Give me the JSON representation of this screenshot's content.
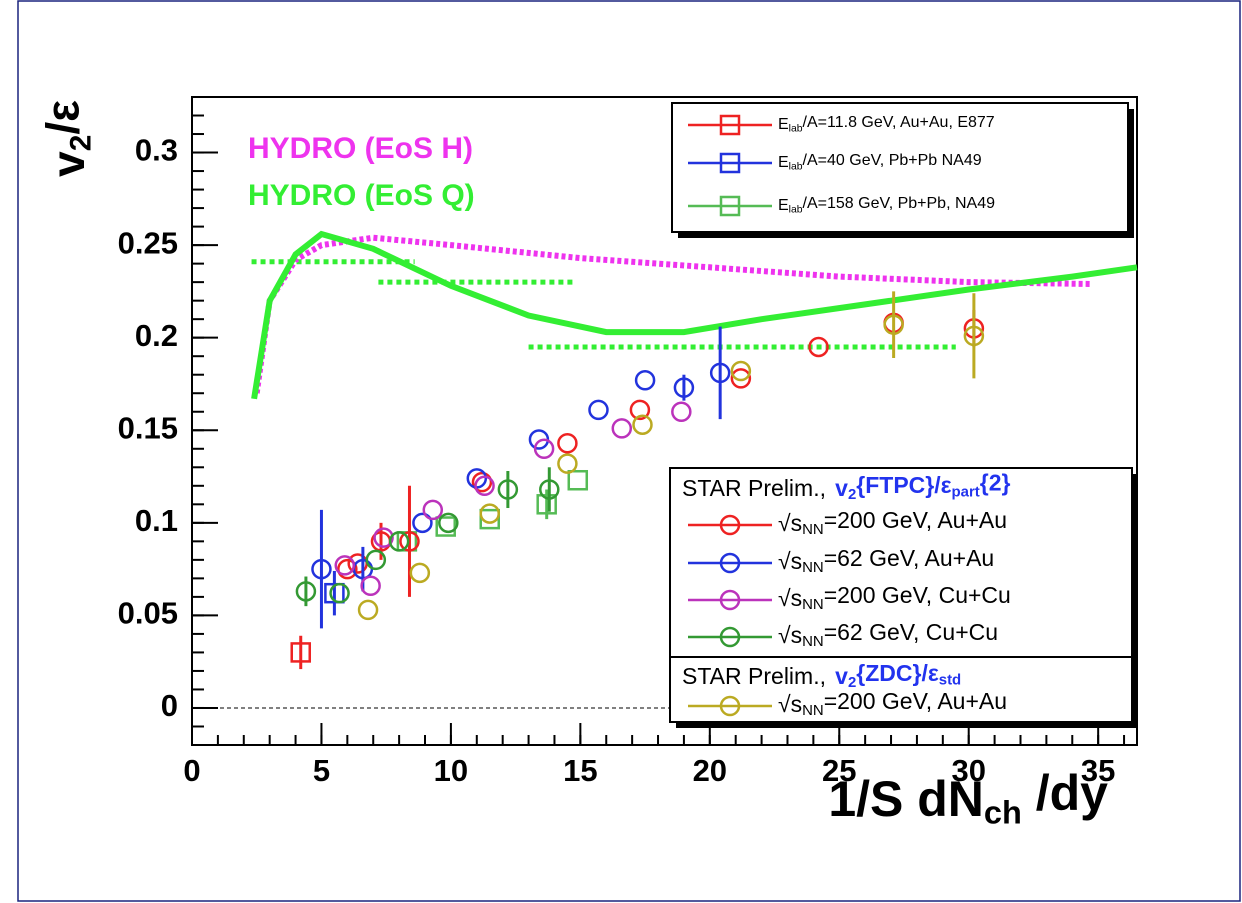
{
  "chart_data": {
    "type": "scatter",
    "y_title": [
      {
        "t": "v"
      },
      {
        "t": "2",
        "sub": true
      },
      {
        "t": "/ε"
      }
    ],
    "x_title": [
      {
        "t": "1/S dN"
      },
      {
        "t": "ch",
        "sub": true
      },
      {
        "t": " /dy"
      }
    ],
    "xlim": [
      0,
      36.5
    ],
    "ylim": [
      -0.02,
      0.33
    ],
    "xticks": [
      0,
      5,
      10,
      15,
      20,
      25,
      30,
      35
    ],
    "yticks": [
      0,
      0.05,
      0.1,
      0.15,
      0.2,
      0.25,
      0.3
    ],
    "hline": 0,
    "curves": [
      {
        "name": "HYDRO (EoS H)",
        "color": "#ee33ee",
        "style": "dotted",
        "x": [
          2.5,
          3,
          4,
          5,
          7,
          10,
          15,
          20,
          25,
          30,
          34.7
        ],
        "values": [
          0.17,
          0.22,
          0.242,
          0.25,
          0.254,
          0.25,
          0.243,
          0.238,
          0.233,
          0.23,
          0.229
        ]
      },
      {
        "name": "HYDRO (EoS Q)",
        "color": "#33ee33",
        "style": "solid",
        "x": [
          2.4,
          3,
          4,
          5,
          7,
          10,
          13,
          16,
          19,
          22,
          26,
          30,
          34,
          36.5
        ],
        "values": [
          0.167,
          0.22,
          0.245,
          0.256,
          0.248,
          0.228,
          0.212,
          0.203,
          0.203,
          0.21,
          0.218,
          0.226,
          0.233,
          0.238
        ]
      }
    ],
    "segments": [
      {
        "color": "#33ee33",
        "x": [
          2.3,
          8.6
        ],
        "y": 0.241
      },
      {
        "color": "#33ee33",
        "x": [
          7.2,
          14.8
        ],
        "y": 0.23
      },
      {
        "color": "#33ee33",
        "x": [
          13.0,
          29.5
        ],
        "y": 0.195
      }
    ],
    "groups": [
      {
        "series": [
          {
            "name": [
              {
                "t": "E"
              },
              {
                "t": "lab",
                "sub": true
              },
              {
                "t": "/A=11.8 GeV, Au+Au, E877"
              }
            ],
            "color": "#ee2222",
            "marker": "square",
            "x": [
              4.2
            ],
            "values": [
              0.03
            ],
            "errors": [
              0.009
            ]
          },
          {
            "name": [
              {
                "t": "E"
              },
              {
                "t": "lab",
                "sub": true
              },
              {
                "t": "/A=40 GeV, Pb+Pb NA49"
              }
            ],
            "color": "#2233dd",
            "marker": "square",
            "x": [
              5.5
            ],
            "values": [
              0.062
            ],
            "errors": [
              0.012
            ]
          },
          {
            "name": [
              {
                "t": "E"
              },
              {
                "t": "lab",
                "sub": true
              },
              {
                "t": "/A=158 GeV, Pb+Pb, NA49"
              }
            ],
            "color": "#55bb55",
            "marker": "square",
            "x": [
              8.3,
              9.8,
              11.5,
              13.7,
              14.9
            ],
            "values": [
              0.09,
              0.098,
              0.102,
              0.11,
              0.123
            ],
            "errors": [
              null,
              null,
              null,
              0.008,
              null
            ]
          }
        ]
      },
      {
        "header": [
          {
            "t": "STAR Prelim.,"
          },
          {
            "t": "v",
            "color": "#2233ee",
            "bold": true
          },
          {
            "t": "2",
            "sub": true,
            "color": "#2233ee",
            "bold": true
          },
          {
            "t": "{FTPC}/ε",
            "color": "#2233ee",
            "bold": true
          },
          {
            "t": "part",
            "sub": true,
            "color": "#2233ee",
            "bold": true
          },
          {
            "t": "{2}",
            "color": "#2233ee",
            "bold": true
          }
        ],
        "series": [
          {
            "name": [
              {
                "t": "√s"
              },
              {
                "t": "NN",
                "sub": true
              },
              {
                "t": "=200 GeV, Au+Au"
              }
            ],
            "color": "#ee2222",
            "marker": "circle",
            "x": [
              6.0,
              6.4,
              7.3,
              8.4,
              11.2,
              14.5,
              17.3,
              21.2,
              24.2,
              27.1,
              30.2
            ],
            "values": [
              0.075,
              0.078,
              0.09,
              0.09,
              0.122,
              0.143,
              0.161,
              0.178,
              0.195,
              0.208,
              0.205
            ],
            "errors": [
              null,
              null,
              0.01,
              0.03,
              null,
              null,
              null,
              null,
              null,
              null,
              0.01
            ]
          },
          {
            "name": [
              {
                "t": "√s"
              },
              {
                "t": "NN",
                "sub": true
              },
              {
                "t": "=62 GeV, Au+Au"
              }
            ],
            "color": "#2233dd",
            "marker": "circle",
            "x": [
              5.0,
              6.6,
              8.9,
              11.0,
              13.4,
              15.7,
              17.5,
              19.0,
              20.4
            ],
            "values": [
              0.075,
              0.075,
              0.1,
              0.124,
              0.145,
              0.161,
              0.177,
              0.173,
              0.181
            ],
            "errors": [
              0.032,
              0.012,
              null,
              null,
              null,
              null,
              null,
              0.007,
              0.025
            ]
          },
          {
            "name": [
              {
                "t": "√s"
              },
              {
                "t": "NN",
                "sub": true
              },
              {
                "t": "=200 GeV, Cu+Cu"
              }
            ],
            "color": "#bb33bb",
            "marker": "circle",
            "x": [
              5.9,
              6.9,
              7.4,
              9.3,
              11.3,
              13.6,
              16.6,
              18.9
            ],
            "values": [
              0.077,
              0.066,
              0.092,
              0.107,
              0.12,
              0.14,
              0.151,
              0.16
            ],
            "errors": [
              null,
              null,
              null,
              null,
              null,
              null,
              null,
              null
            ]
          },
          {
            "name": [
              {
                "t": "√s"
              },
              {
                "t": "NN",
                "sub": true
              },
              {
                "t": "=62 GeV, Cu+Cu"
              }
            ],
            "color": "#339933",
            "marker": "circle",
            "x": [
              4.4,
              5.7,
              7.1,
              8.0,
              9.9,
              12.2,
              13.8
            ],
            "values": [
              0.063,
              0.062,
              0.08,
              0.09,
              0.1,
              0.118,
              0.118
            ],
            "errors": [
              0.008,
              null,
              null,
              null,
              null,
              0.01,
              0.012
            ]
          }
        ]
      },
      {
        "header": [
          {
            "t": "STAR Prelim.,"
          },
          {
            "t": "v",
            "color": "#2233ee",
            "bold": true
          },
          {
            "t": "2",
            "sub": true,
            "color": "#2233ee",
            "bold": true
          },
          {
            "t": "{ZDC}/ε",
            "color": "#2233ee",
            "bold": true
          },
          {
            "t": "std",
            "sub": true,
            "color": "#2233ee",
            "bold": true
          }
        ],
        "series": [
          {
            "name": [
              {
                "t": "√s"
              },
              {
                "t": "NN",
                "sub": true
              },
              {
                "t": "=200 GeV, Au+Au"
              }
            ],
            "color": "#bbaa22",
            "marker": "circle",
            "x": [
              6.8,
              8.8,
              11.5,
              14.5,
              17.4,
              21.2,
              27.1,
              30.2
            ],
            "values": [
              0.053,
              0.073,
              0.105,
              0.132,
              0.153,
              0.182,
              0.207,
              0.201
            ],
            "errors": [
              null,
              null,
              null,
              null,
              null,
              null,
              0.018,
              0.023
            ]
          }
        ]
      }
    ]
  }
}
